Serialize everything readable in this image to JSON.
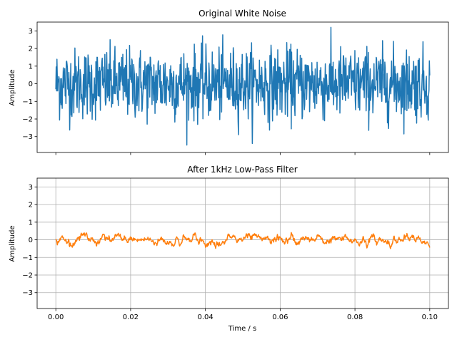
{
  "chart_data": [
    {
      "type": "line",
      "title": "Original White Noise",
      "xlabel": "",
      "ylabel": "Amplitude",
      "xlim": [
        -0.005,
        0.105
      ],
      "ylim": [
        -3.9,
        3.5
      ],
      "x_ticks": [
        0.0,
        0.02,
        0.04,
        0.06,
        0.08,
        0.1
      ],
      "x_tick_labels_visible": false,
      "y_ticks": [
        -3,
        -2,
        -1,
        0,
        1,
        2,
        3
      ],
      "y_tick_labels": [
        "−3",
        "−2",
        "−1",
        "0",
        "1",
        "2",
        "3"
      ],
      "grid": false,
      "series": [
        {
          "color": "#1f77b4",
          "x_range": [
            0.0,
            0.1
          ],
          "num_points": 1000,
          "distribution": "gaussian white noise",
          "mean": 0.0,
          "std": 1.0,
          "min": -3.6,
          "max": 3.2
        }
      ]
    },
    {
      "type": "line",
      "title": "After 1kHz Low-Pass Filter",
      "xlabel": "Time / s",
      "ylabel": "Amplitude",
      "xlim": [
        -0.005,
        0.105
      ],
      "ylim": [
        -3.9,
        3.5
      ],
      "x_ticks": [
        0.0,
        0.02,
        0.04,
        0.06,
        0.08,
        0.1
      ],
      "x_tick_labels": [
        "0.00",
        "0.02",
        "0.04",
        "0.06",
        "0.08",
        "0.10"
      ],
      "y_ticks": [
        -3,
        -2,
        -1,
        0,
        1,
        2,
        3
      ],
      "y_tick_labels": [
        "−3",
        "−2",
        "−1",
        "0",
        "1",
        "2",
        "3"
      ],
      "grid": true,
      "series": [
        {
          "color": "#ff7f0e",
          "x_range": [
            0.0,
            0.1
          ],
          "num_points": 1000,
          "distribution": "low-pass filtered noise",
          "mean": 0.0,
          "std": 0.17,
          "min": -0.5,
          "max": 0.5
        }
      ]
    }
  ]
}
